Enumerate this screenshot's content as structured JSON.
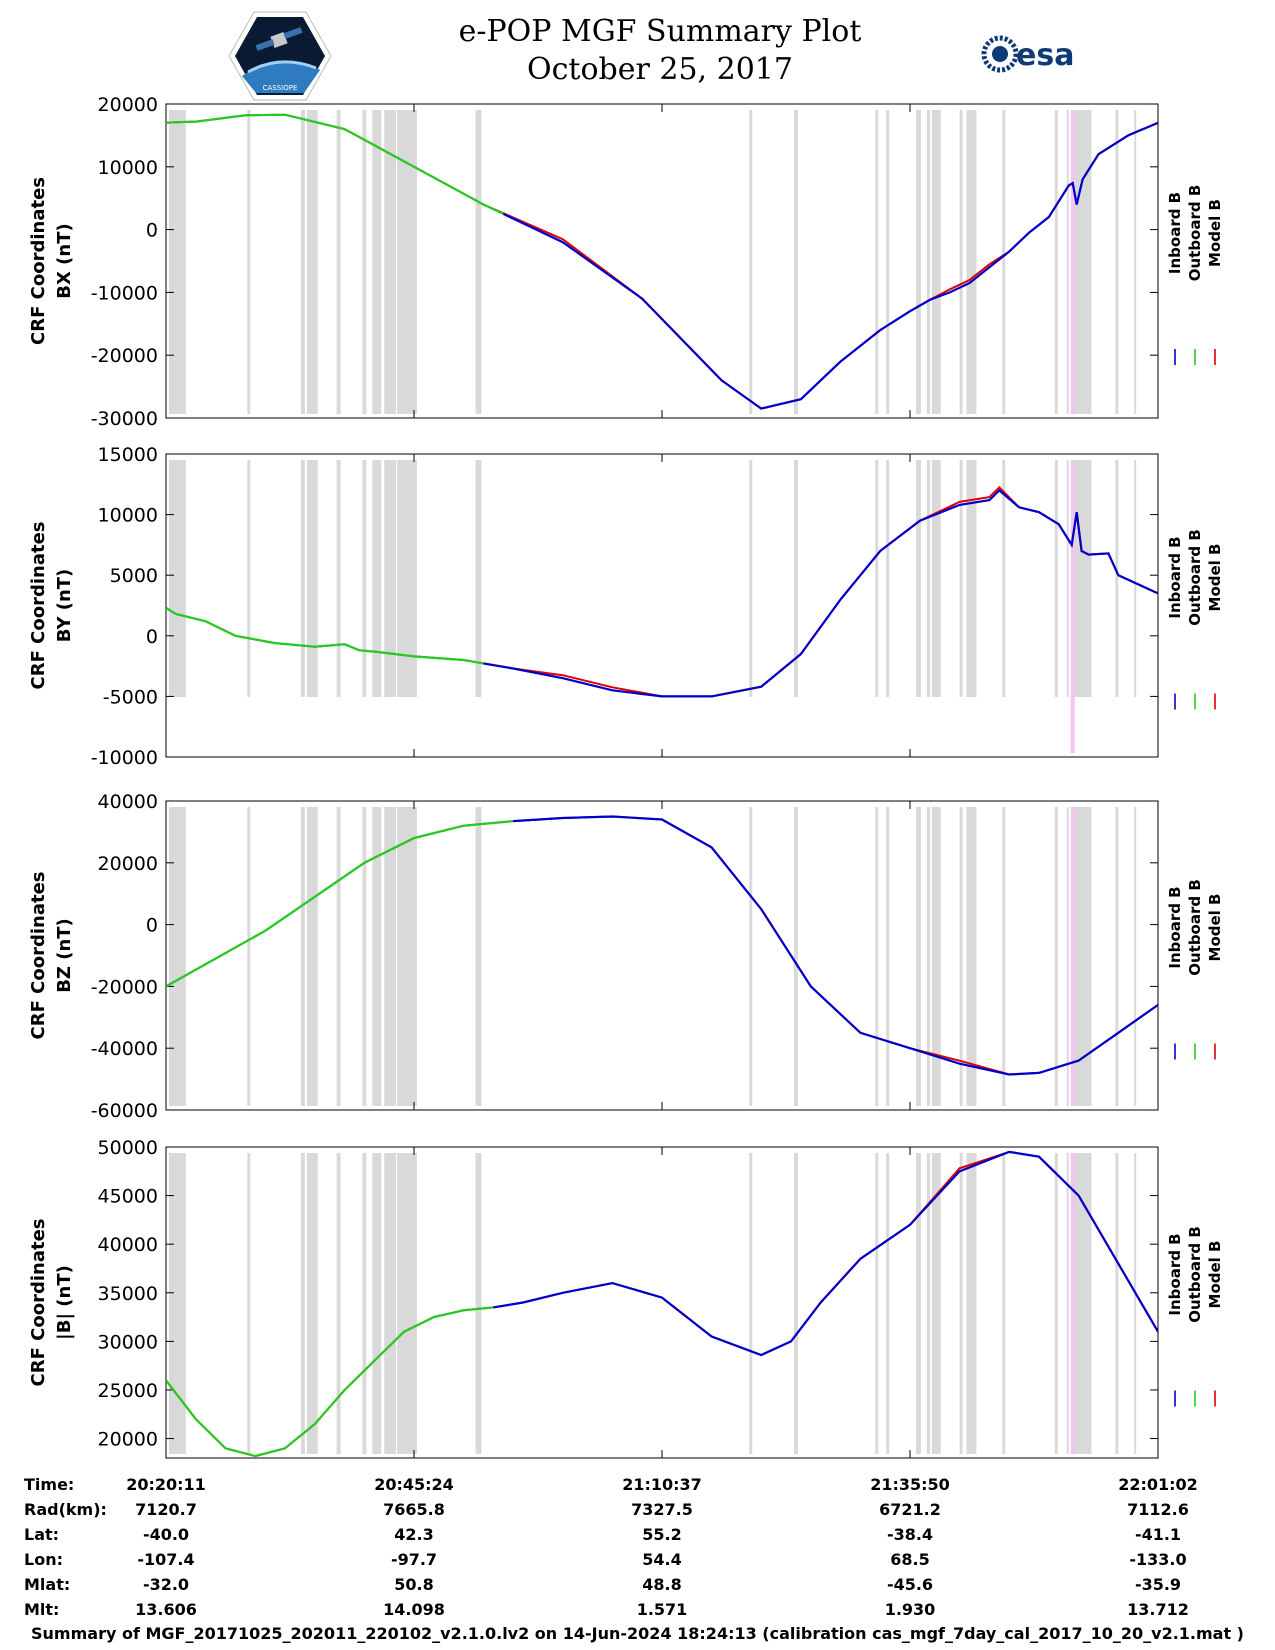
{
  "header": {
    "title_line1": "e-POP MGF Summary Plot",
    "title_line2": "October 25, 2017",
    "logo_left": "CASSIOPE",
    "logo_right": "esa"
  },
  "footer": "Summary of MGF_20171025_202011_220102_v2.1.0.lv2 on 14-Jun-2024 18:24:13 (calibration cas_mgf_7day_cal_2017_10_20_v2.1.mat )",
  "orbit_table": {
    "rows": [
      {
        "label": "Time:",
        "values": [
          "20:20:11",
          "20:45:24",
          "21:10:37",
          "21:35:50",
          "22:01:02"
        ]
      },
      {
        "label": "Rad(km):",
        "values": [
          "7120.7",
          "7665.8",
          "7327.5",
          "6721.2",
          "7112.6"
        ]
      },
      {
        "label": "Lat:",
        "values": [
          "-40.0",
          "42.3",
          "55.2",
          "-38.4",
          "-41.1"
        ]
      },
      {
        "label": "Lon:",
        "values": [
          "-107.4",
          "-97.7",
          "54.4",
          "68.5",
          "-133.0"
        ]
      },
      {
        "label": "Mlat:",
        "values": [
          "-32.0",
          "50.8",
          "48.8",
          "-45.6",
          "-35.9"
        ]
      },
      {
        "label": "Mlt:",
        "values": [
          "13.606",
          "14.098",
          "1.571",
          "1.930",
          "13.712"
        ]
      }
    ]
  },
  "colors": {
    "inboard": "#0000cc",
    "outboard": "#22cc22",
    "model": "#dd0000",
    "gap_band": "#d9d9d9",
    "marker": "#f2c4ef"
  },
  "legend": [
    "Inboard B",
    "Outboard B",
    "Model B"
  ],
  "chart_data": [
    {
      "type": "line",
      "ylabel_line1": "CRF Coordinates",
      "ylabel_line2": "BX (nT)",
      "ylim": [
        -30000,
        20000
      ],
      "yticks": [
        20000,
        10000,
        0,
        -10000,
        -20000,
        -30000
      ],
      "tick_labels": [
        "20000",
        "10000",
        "0",
        "-10000",
        "-20000",
        "-30000"
      ],
      "xlim": [
        0,
        100
      ],
      "outboard_until": 34,
      "model_deviation_ranges": [
        [
          40,
          46
        ],
        [
          78,
          84
        ]
      ],
      "x": [
        0,
        1,
        3,
        8,
        12,
        18,
        25,
        32,
        40,
        48,
        56,
        60,
        64,
        68,
        72,
        75,
        77,
        79,
        81,
        83,
        85,
        87,
        89,
        90,
        91,
        91.4,
        91.8,
        92.4,
        94,
        97,
        100
      ],
      "y": [
        17000,
        17100,
        17200,
        18200,
        18300,
        16000,
        10000,
        4000,
        -2000,
        -11000,
        -24000,
        -28500,
        -27000,
        -21000,
        -16000,
        -13000,
        -11200,
        -10000,
        -8500,
        -6000,
        -3500,
        -500,
        2000,
        4500,
        7000,
        7400,
        4000,
        8000,
        12000,
        15000,
        17000
      ]
    },
    {
      "type": "line",
      "ylabel_line1": "CRF Coordinates",
      "ylabel_line2": "BY (nT)",
      "ylim": [
        -10000,
        15000
      ],
      "yticks": [
        15000,
        10000,
        5000,
        0,
        -5000,
        -10000
      ],
      "tick_labels": [
        "15000",
        "10000",
        "5000",
        "0",
        "-5000",
        "-10000"
      ],
      "xlim": [
        0,
        100
      ],
      "outboard_until": 32,
      "model_deviation_ranges": [
        [
          40,
          47
        ],
        [
          78,
          84
        ]
      ],
      "x": [
        0,
        1,
        4,
        7,
        11,
        15,
        18,
        19.5,
        21,
        25,
        30,
        35,
        40,
        45,
        50,
        55,
        60,
        64,
        68,
        72,
        76,
        80,
        83,
        84,
        86,
        88,
        90,
        91.3,
        91.8,
        92.3,
        93,
        95,
        96,
        100
      ],
      "y": [
        2300,
        1800,
        1200,
        0,
        -600,
        -900,
        -700,
        -1200,
        -1300,
        -1700,
        -2000,
        -2700,
        -3500,
        -4500,
        -5000,
        -5000,
        -4200,
        -1500,
        3000,
        7000,
        9500,
        10800,
        11200,
        12000,
        10600,
        10200,
        9200,
        7500,
        10200,
        7000,
        6700,
        6800,
        5000,
        3500
      ]
    },
    {
      "type": "line",
      "ylabel_line1": "CRF Coordinates",
      "ylabel_line2": "BZ (nT)",
      "ylim": [
        -60000,
        40000
      ],
      "yticks": [
        40000,
        20000,
        0,
        -20000,
        -40000,
        -60000
      ],
      "tick_labels": [
        "40000",
        "20000",
        "0",
        "-20000",
        "-40000",
        "-60000"
      ],
      "xlim": [
        0,
        100
      ],
      "outboard_until": 35,
      "model_deviation_ranges": [
        [
          78,
          82
        ]
      ],
      "x": [
        0,
        5,
        10,
        15,
        20,
        25,
        30,
        35,
        40,
        45,
        50,
        55,
        60,
        65,
        70,
        75,
        80,
        85,
        88,
        92,
        96,
        100
      ],
      "y": [
        -20000,
        -11000,
        -2000,
        9000,
        20000,
        28000,
        32000,
        33500,
        34500,
        35000,
        34000,
        25000,
        5000,
        -20000,
        -35000,
        -40000,
        -45000,
        -48500,
        -48000,
        -44000,
        -35000,
        -26000
      ]
    },
    {
      "type": "line",
      "ylabel_line1": "CRF Coordinates",
      "ylabel_line2": "|B| (nT)",
      "ylim": [
        18000,
        50000
      ],
      "yticks": [
        50000,
        45000,
        40000,
        35000,
        30000,
        25000,
        20000
      ],
      "tick_labels": [
        "50000",
        "45000",
        "40000",
        "35000",
        "30000",
        "25000",
        "20000"
      ],
      "xlim": [
        0,
        100
      ],
      "outboard_until": 33,
      "model_deviation_ranges": [
        [
          80,
          84
        ]
      ],
      "x": [
        0,
        3,
        6,
        9,
        12,
        15,
        18,
        21,
        24,
        27,
        30,
        33,
        36,
        40,
        45,
        50,
        55,
        60,
        63,
        66,
        70,
        75,
        80,
        85,
        88,
        92,
        96,
        100
      ],
      "y": [
        26000,
        22000,
        19000,
        18200,
        19000,
        21500,
        25000,
        28000,
        31000,
        32500,
        33200,
        33500,
        34000,
        35000,
        36000,
        34500,
        30500,
        28600,
        30000,
        34000,
        38500,
        42000,
        47500,
        49500,
        49000,
        45000,
        38000,
        31000
      ]
    }
  ]
}
